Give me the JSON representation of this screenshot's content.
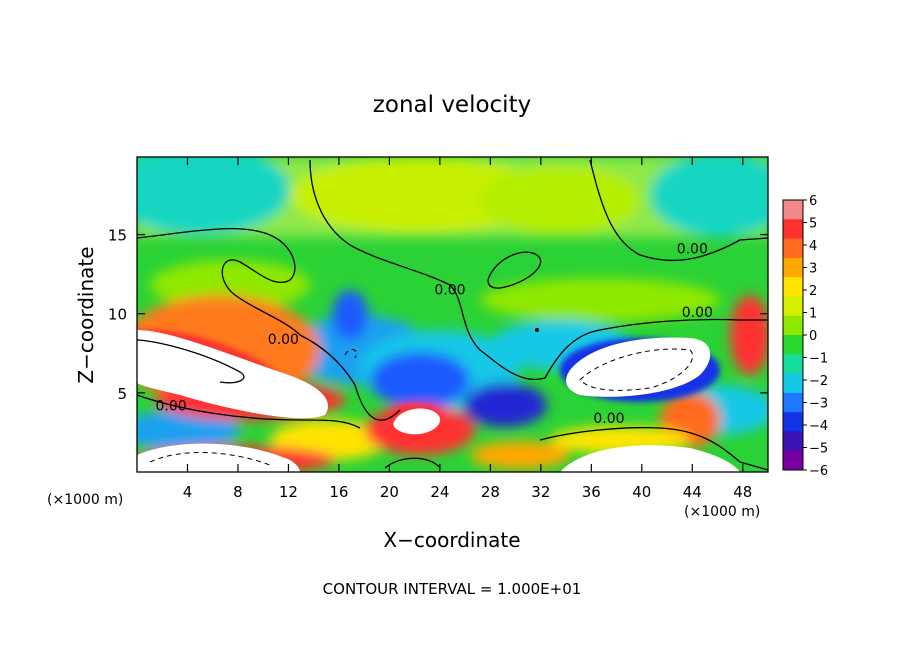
{
  "chart_data": {
    "type": "heatmap",
    "title": "zonal velocity",
    "xlabel": "X−coordinate",
    "ylabel": "Z−coordinate",
    "x_unit_label_left": "(×1000 m)",
    "x_unit_label_right": "(×1000 m)",
    "footer": "CONTOUR INTERVAL = 1.000E+01",
    "xlim": [
      0,
      50
    ],
    "ylim": [
      0,
      19.9
    ],
    "x_ticks": [
      4,
      8,
      12,
      16,
      20,
      24,
      28,
      32,
      36,
      40,
      44,
      48
    ],
    "x_tick_labels": [
      "4",
      "8",
      "12",
      "16",
      "20",
      "24",
      "28",
      "32",
      "36",
      "40",
      "44",
      "48"
    ],
    "y_ticks": [
      5,
      10,
      15
    ],
    "y_tick_labels": [
      "5",
      "10",
      "15"
    ],
    "colorbar": {
      "min": -6,
      "max": 6,
      "tick_labels": [
        "6",
        "5",
        "4",
        "3",
        "2",
        "1",
        "0",
        "−1",
        "−2",
        "−3",
        "−4",
        "−5",
        "−6"
      ],
      "colors": [
        "#f08a8a",
        "#ff3030",
        "#ff6a1e",
        "#ffa800",
        "#ffe400",
        "#d2f000",
        "#8fe800",
        "#28d82a",
        "#14dc9a",
        "#14c8e6",
        "#1e78ff",
        "#1432e6",
        "#3a14b4",
        "#7800a0"
      ]
    },
    "contour_labels": [
      {
        "text": "0.00",
        "x": 2.7,
        "z": 3.9
      },
      {
        "text": "0.00",
        "x": 11.6,
        "z": 8.1
      },
      {
        "text": "0.00",
        "x": 24.8,
        "z": 11.2
      },
      {
        "text": "0.00",
        "x": 44.0,
        "z": 13.8
      },
      {
        "text": "0.00",
        "x": 44.4,
        "z": 9.8
      },
      {
        "text": "0.00",
        "x": 37.4,
        "z": 3.1
      }
    ],
    "grid": false
  }
}
